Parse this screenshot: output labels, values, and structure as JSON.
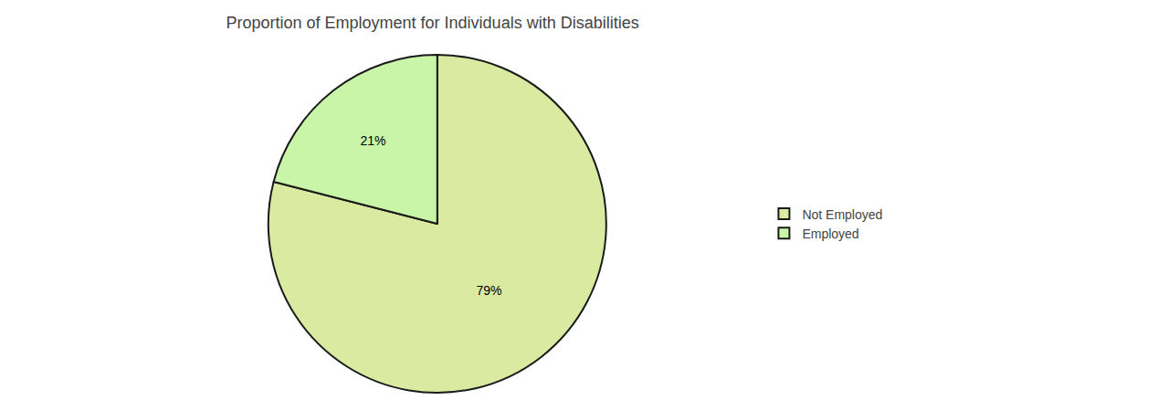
{
  "chart_data": {
    "type": "pie",
    "title": "Proportion of Employment for Individuals with Disabilities",
    "categories": [
      "Not Employed",
      "Employed"
    ],
    "values": [
      79,
      21
    ],
    "value_labels": [
      "79%",
      "21%"
    ],
    "colors": [
      "#daeaa0",
      "#c8f5a8"
    ],
    "data_labels": true,
    "legend": "right"
  }
}
